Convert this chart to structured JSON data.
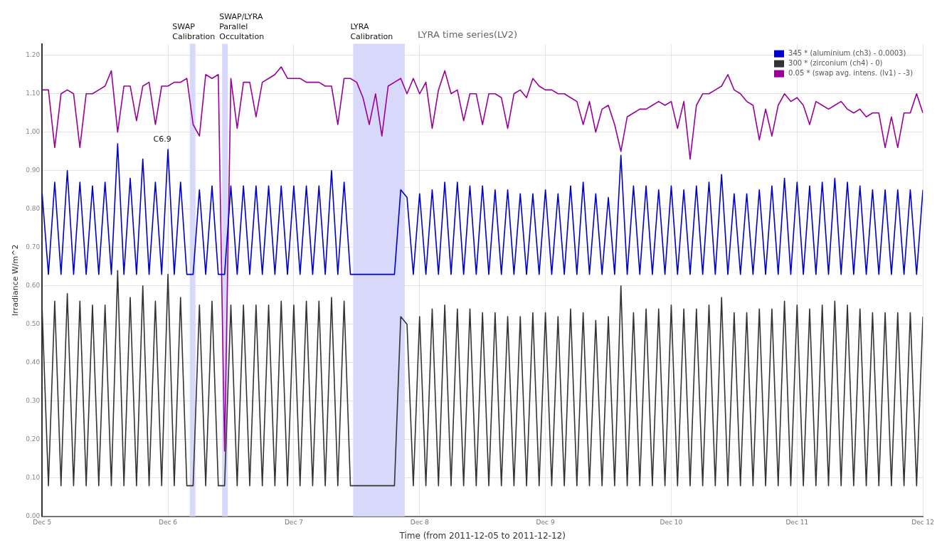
{
  "chart_data": {
    "type": "line",
    "title": "LYRA time series(LV2)",
    "xlabel": "Time (from 2011-12-05 to 2011-12-12)",
    "ylabel": "Irradiance W/m^2",
    "x": [
      "2011-12-05T00:00",
      "2011-12-05T01:12",
      "2011-12-05T02:24",
      "2011-12-05T03:36",
      "2011-12-05T04:48",
      "2011-12-05T06:00",
      "2011-12-05T07:12",
      "2011-12-05T08:24",
      "2011-12-05T09:36",
      "2011-12-05T10:48",
      "2011-12-05T12:00",
      "2011-12-05T13:12",
      "2011-12-05T14:24",
      "2011-12-05T15:36",
      "2011-12-05T16:48",
      "2011-12-05T18:00",
      "2011-12-05T19:12",
      "2011-12-05T20:24",
      "2011-12-05T21:36",
      "2011-12-05T22:48",
      "2011-12-06T00:00",
      "2011-12-06T01:12",
      "2011-12-06T02:24",
      "2011-12-06T03:36",
      "2011-12-06T04:48",
      "2011-12-06T06:00",
      "2011-12-06T07:12",
      "2011-12-06T08:24",
      "2011-12-06T09:36",
      "2011-12-06T10:48",
      "2011-12-06T12:00",
      "2011-12-06T13:12",
      "2011-12-06T14:24",
      "2011-12-06T15:36",
      "2011-12-06T16:48",
      "2011-12-06T18:00",
      "2011-12-06T19:12",
      "2011-12-06T20:24",
      "2011-12-06T21:36",
      "2011-12-06T22:48",
      "2011-12-07T00:00",
      "2011-12-07T01:12",
      "2011-12-07T02:24",
      "2011-12-07T03:36",
      "2011-12-07T04:48",
      "2011-12-07T06:00",
      "2011-12-07T07:12",
      "2011-12-07T08:24",
      "2011-12-07T09:36",
      "2011-12-07T10:48",
      "2011-12-07T12:00",
      "2011-12-07T13:12",
      "2011-12-07T14:24",
      "2011-12-07T15:36",
      "2011-12-07T16:48",
      "2011-12-07T18:00",
      "2011-12-07T19:12",
      "2011-12-07T20:24",
      "2011-12-07T21:36",
      "2011-12-07T22:48",
      "2011-12-08T00:00",
      "2011-12-08T01:12",
      "2011-12-08T02:24",
      "2011-12-08T03:36",
      "2011-12-08T04:48",
      "2011-12-08T06:00",
      "2011-12-08T07:12",
      "2011-12-08T08:24",
      "2011-12-08T09:36",
      "2011-12-08T10:48",
      "2011-12-08T12:00",
      "2011-12-08T13:12",
      "2011-12-08T14:24",
      "2011-12-08T15:36",
      "2011-12-08T16:48",
      "2011-12-08T18:00",
      "2011-12-08T19:12",
      "2011-12-08T20:24",
      "2011-12-08T21:36",
      "2011-12-08T22:48",
      "2011-12-09T00:00",
      "2011-12-09T01:12",
      "2011-12-09T02:24",
      "2011-12-09T03:36",
      "2011-12-09T04:48",
      "2011-12-09T06:00",
      "2011-12-09T07:12",
      "2011-12-09T08:24",
      "2011-12-09T09:36",
      "2011-12-09T10:48",
      "2011-12-09T12:00",
      "2011-12-09T13:12",
      "2011-12-09T14:24",
      "2011-12-09T15:36",
      "2011-12-09T16:48",
      "2011-12-09T18:00",
      "2011-12-09T19:12",
      "2011-12-09T20:24",
      "2011-12-09T21:36",
      "2011-12-09T22:48",
      "2011-12-10T00:00",
      "2011-12-10T01:12",
      "2011-12-10T02:24",
      "2011-12-10T03:36",
      "2011-12-10T04:48",
      "2011-12-10T06:00",
      "2011-12-10T07:12",
      "2011-12-10T08:24",
      "2011-12-10T09:36",
      "2011-12-10T10:48",
      "2011-12-10T12:00",
      "2011-12-10T13:12",
      "2011-12-10T14:24",
      "2011-12-10T15:36",
      "2011-12-10T16:48",
      "2011-12-10T18:00",
      "2011-12-10T19:12",
      "2011-12-10T20:24",
      "2011-12-10T21:36",
      "2011-12-10T22:48",
      "2011-12-11T00:00",
      "2011-12-11T01:12",
      "2011-12-11T02:24",
      "2011-12-11T03:36",
      "2011-12-11T04:48",
      "2011-12-11T06:00",
      "2011-12-11T07:12",
      "2011-12-11T08:24",
      "2011-12-11T09:36",
      "2011-12-11T10:48",
      "2011-12-11T12:00",
      "2011-12-11T13:12",
      "2011-12-11T14:24",
      "2011-12-11T15:36",
      "2011-12-11T16:48",
      "2011-12-11T18:00",
      "2011-12-11T19:12",
      "2011-12-11T20:24",
      "2011-12-11T21:36",
      "2011-12-11T22:48",
      "2011-12-12T00:00"
    ],
    "series": [
      {
        "name": "345 * (aluminium (ch3) - 0.0003)",
        "color": "#0000cc",
        "values": [
          0.84,
          0.63,
          0.87,
          0.63,
          0.9,
          0.63,
          0.87,
          0.63,
          0.86,
          0.63,
          0.87,
          0.63,
          0.97,
          0.63,
          0.88,
          0.63,
          0.93,
          0.63,
          0.87,
          0.63,
          0.955,
          0.63,
          0.87,
          0.63,
          0.63,
          0.85,
          0.63,
          0.86,
          0.63,
          0.63,
          0.86,
          0.63,
          0.86,
          0.63,
          0.86,
          0.63,
          0.86,
          0.63,
          0.86,
          0.63,
          0.86,
          0.63,
          0.86,
          0.63,
          0.86,
          0.63,
          0.9,
          0.63,
          0.87,
          0.63,
          0.63,
          0.63,
          0.63,
          0.63,
          0.63,
          0.63,
          0.63,
          0.85,
          0.83,
          0.63,
          0.84,
          0.63,
          0.85,
          0.63,
          0.87,
          0.63,
          0.87,
          0.63,
          0.86,
          0.63,
          0.86,
          0.63,
          0.85,
          0.63,
          0.85,
          0.63,
          0.84,
          0.63,
          0.84,
          0.63,
          0.85,
          0.63,
          0.84,
          0.63,
          0.86,
          0.63,
          0.87,
          0.63,
          0.84,
          0.63,
          0.83,
          0.63,
          0.94,
          0.63,
          0.86,
          0.63,
          0.86,
          0.63,
          0.85,
          0.63,
          0.86,
          0.63,
          0.85,
          0.63,
          0.86,
          0.63,
          0.87,
          0.63,
          0.89,
          0.63,
          0.84,
          0.63,
          0.84,
          0.63,
          0.85,
          0.63,
          0.86,
          0.63,
          0.88,
          0.63,
          0.87,
          0.63,
          0.86,
          0.63,
          0.87,
          0.63,
          0.88,
          0.63,
          0.87,
          0.63,
          0.86,
          0.63,
          0.85,
          0.63,
          0.85,
          0.63,
          0.85,
          0.63,
          0.85,
          0.63,
          0.85
        ]
      },
      {
        "name": "300 * (zirconium (ch4) - 0)",
        "color": "#333333",
        "values": [
          0.54,
          0.08,
          0.56,
          0.08,
          0.58,
          0.08,
          0.56,
          0.08,
          0.55,
          0.08,
          0.55,
          0.08,
          0.64,
          0.08,
          0.57,
          0.08,
          0.6,
          0.08,
          0.56,
          0.08,
          0.63,
          0.08,
          0.57,
          0.08,
          0.08,
          0.55,
          0.08,
          0.56,
          0.08,
          0.08,
          0.55,
          0.08,
          0.55,
          0.08,
          0.55,
          0.08,
          0.55,
          0.08,
          0.56,
          0.08,
          0.55,
          0.08,
          0.56,
          0.08,
          0.56,
          0.08,
          0.57,
          0.08,
          0.56,
          0.08,
          0.08,
          0.08,
          0.08,
          0.08,
          0.08,
          0.08,
          0.08,
          0.52,
          0.5,
          0.08,
          0.52,
          0.08,
          0.54,
          0.08,
          0.55,
          0.08,
          0.54,
          0.08,
          0.54,
          0.08,
          0.53,
          0.08,
          0.53,
          0.08,
          0.52,
          0.08,
          0.52,
          0.08,
          0.53,
          0.08,
          0.53,
          0.08,
          0.52,
          0.08,
          0.54,
          0.08,
          0.53,
          0.08,
          0.51,
          0.08,
          0.52,
          0.08,
          0.6,
          0.08,
          0.53,
          0.08,
          0.54,
          0.08,
          0.54,
          0.08,
          0.55,
          0.08,
          0.54,
          0.08,
          0.54,
          0.08,
          0.55,
          0.08,
          0.57,
          0.08,
          0.53,
          0.08,
          0.53,
          0.08,
          0.54,
          0.08,
          0.54,
          0.08,
          0.56,
          0.08,
          0.55,
          0.08,
          0.54,
          0.08,
          0.55,
          0.08,
          0.56,
          0.08,
          0.55,
          0.08,
          0.54,
          0.08,
          0.53,
          0.08,
          0.53,
          0.08,
          0.53,
          0.08,
          0.53,
          0.08,
          0.52
        ]
      },
      {
        "name": "0.05 * (swap avg. intens. (lv1) - -3)",
        "color": "#990099",
        "values": [
          1.11,
          1.11,
          0.96,
          1.1,
          1.11,
          1.1,
          0.96,
          1.1,
          1.1,
          1.11,
          1.12,
          1.16,
          1.0,
          1.12,
          1.12,
          1.03,
          1.12,
          1.13,
          1.02,
          1.12,
          1.12,
          1.13,
          1.13,
          1.14,
          1.02,
          0.99,
          1.15,
          1.14,
          1.15,
          0.17,
          1.14,
          1.01,
          1.13,
          1.13,
          1.04,
          1.13,
          1.14,
          1.15,
          1.17,
          1.14,
          1.14,
          1.14,
          1.13,
          1.13,
          1.13,
          1.12,
          1.12,
          1.02,
          1.14,
          1.14,
          1.13,
          1.09,
          1.02,
          1.1,
          0.99,
          1.12,
          1.13,
          1.14,
          1.1,
          1.14,
          1.1,
          1.13,
          1.01,
          1.11,
          1.16,
          1.1,
          1.11,
          1.03,
          1.1,
          1.1,
          1.02,
          1.1,
          1.1,
          1.09,
          1.01,
          1.1,
          1.11,
          1.09,
          1.14,
          1.12,
          1.11,
          1.11,
          1.1,
          1.1,
          1.09,
          1.08,
          1.02,
          1.08,
          1.0,
          1.06,
          1.07,
          1.02,
          0.95,
          1.04,
          1.05,
          1.06,
          1.06,
          1.07,
          1.08,
          1.07,
          1.08,
          1.01,
          1.08,
          0.93,
          1.07,
          1.1,
          1.1,
          1.11,
          1.12,
          1.15,
          1.11,
          1.1,
          1.08,
          1.07,
          0.98,
          1.06,
          0.99,
          1.07,
          1.1,
          1.08,
          1.09,
          1.07,
          1.02,
          1.08,
          1.07,
          1.06,
          1.07,
          1.08,
          1.06,
          1.05,
          1.06,
          1.04,
          1.05,
          1.05,
          0.96,
          1.04,
          0.96,
          1.05,
          1.05,
          1.1,
          1.05
        ]
      }
    ],
    "xlim": [
      "2011-12-05",
      "2011-12-12"
    ],
    "xticks": [
      {
        "value": "2011-12-05",
        "label": "Dec 5"
      },
      {
        "value": "2011-12-06",
        "label": "Dec 6"
      },
      {
        "value": "2011-12-07",
        "label": "Dec 7"
      },
      {
        "value": "2011-12-08",
        "label": "Dec 8"
      },
      {
        "value": "2011-12-09",
        "label": "Dec 9"
      },
      {
        "value": "2011-12-10",
        "label": "Dec 10"
      },
      {
        "value": "2011-12-11",
        "label": "Dec 11"
      },
      {
        "value": "2011-12-12",
        "label": "Dec 12"
      }
    ],
    "ylim": [
      0,
      1.23
    ],
    "yticks": [
      {
        "value": 0,
        "label": "0.00"
      },
      {
        "value": 0.1,
        "label": "0.10"
      },
      {
        "value": 0.2,
        "label": "0.20"
      },
      {
        "value": 0.3,
        "label": "0.30"
      },
      {
        "value": 0.4,
        "label": "0.40"
      },
      {
        "value": 0.5,
        "label": "0.50"
      },
      {
        "value": 0.6,
        "label": "0.60"
      },
      {
        "value": 0.7,
        "label": "0.70"
      },
      {
        "value": 0.8,
        "label": "0.80"
      },
      {
        "value": 0.9,
        "label": "0.90"
      },
      {
        "value": 1.0,
        "label": "1.00"
      },
      {
        "value": 1.1,
        "label": "1.10"
      },
      {
        "value": 1.2,
        "label": "1.20"
      }
    ],
    "bands": [
      {
        "axis": "x",
        "from": "2011-12-06T04:10",
        "to": "2011-12-06T05:15",
        "label": "SWAP Calibration",
        "color": "#d8d8fa"
      },
      {
        "axis": "x",
        "from": "2011-12-06T10:20",
        "to": "2011-12-06T11:25",
        "label": "SWAP/LYRA Parallel Occultation",
        "color": "#d8d8fa"
      },
      {
        "axis": "x",
        "from": "2011-12-07T11:20",
        "to": "2011-12-07T21:10",
        "label": "LYRA Calibration",
        "color": "#d8d8fa"
      }
    ],
    "annotations": [
      {
        "text": "C6.9",
        "x": "2011-12-06T00:00",
        "y": 0.96
      }
    ],
    "grid": true,
    "legend": "top right",
    "marker": "none",
    "line_style": "solid"
  }
}
